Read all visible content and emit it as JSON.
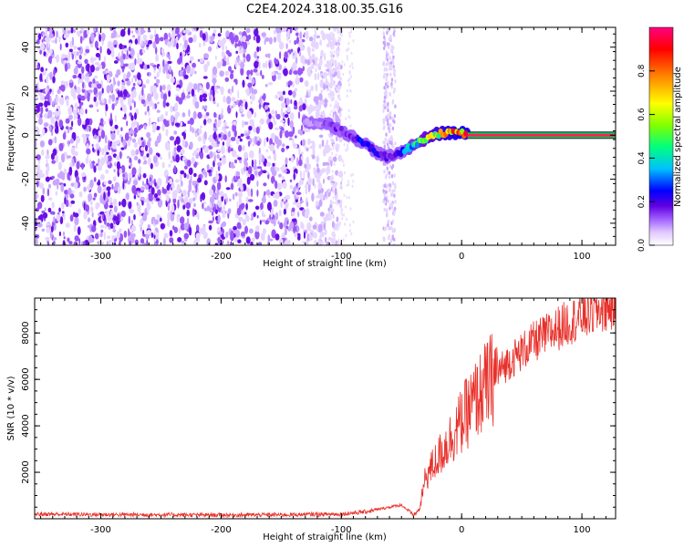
{
  "title": "C2E4.2024.318.00.35.G16",
  "chart_data": [
    {
      "type": "heatmap",
      "xlabel": "Height of straight line (km)",
      "ylabel": "Frequency (Hz)",
      "xlim": [
        -355,
        128
      ],
      "ylim": [
        -50,
        49
      ],
      "xticks": [
        -300,
        -200,
        -100,
        0,
        100
      ],
      "yticks": [
        -40,
        -20,
        0,
        20,
        40
      ],
      "colorbar": {
        "label": "Normalized spectral amplitude",
        "range": [
          0,
          1
        ],
        "ticks": [
          0.0,
          0.2,
          0.4,
          0.6,
          0.8
        ],
        "colors": [
          "#ffffff",
          "#e0c8ff",
          "#a060ff",
          "#6000e0",
          "#0000ff",
          "#00c0ff",
          "#00ff80",
          "#80ff00",
          "#ffff00",
          "#ff8000",
          "#ff0000",
          "#ff0080"
        ]
      },
      "features": {
        "noise_region_x": [
          -355,
          -110
        ],
        "noise_band_x": [
          -65,
          -55
        ],
        "signal_track": {
          "x": [
            -130,
            -110,
            -100,
            -90,
            -80,
            -70,
            -62,
            -55,
            -45,
            -35,
            -25,
            -15,
            -5,
            0,
            5,
            128
          ],
          "y": [
            6,
            5,
            2,
            -1,
            -4,
            -8,
            -10,
            -9,
            -6,
            -3,
            0,
            1,
            1,
            1,
            0,
            0
          ],
          "amplitude": [
            0.15,
            0.25,
            0.3,
            0.35,
            0.4,
            0.45,
            0.3,
            0.4,
            0.6,
            0.7,
            0.8,
            0.9,
            0.95,
            1.0,
            0.95,
            0.95
          ]
        }
      }
    },
    {
      "type": "line",
      "xlabel": "Height of straight line (km)",
      "ylabel": "SNR (10 * v/v)",
      "xlim": [
        -355,
        128
      ],
      "ylim": [
        0,
        9500
      ],
      "xticks": [
        -300,
        -200,
        -100,
        0,
        100
      ],
      "yticks": [
        2000,
        4000,
        6000,
        8000
      ],
      "color": "#e8302a",
      "series": [
        {
          "x": [
            -355,
            -300,
            -250,
            -200,
            -150,
            -100,
            -80,
            -60,
            -50,
            -40,
            -35,
            -30,
            -20,
            -10,
            0,
            10,
            20,
            30,
            40,
            50,
            60,
            70,
            80,
            90,
            100,
            110,
            120,
            128
          ],
          "y": [
            200,
            180,
            170,
            160,
            170,
            200,
            300,
            500,
            600,
            150,
            400,
            1800,
            2600,
            3400,
            4200,
            5000,
            5700,
            6300,
            6800,
            7200,
            7600,
            7900,
            8200,
            8500,
            8700,
            8900,
            9100,
            9200
          ]
        }
      ]
    }
  ]
}
